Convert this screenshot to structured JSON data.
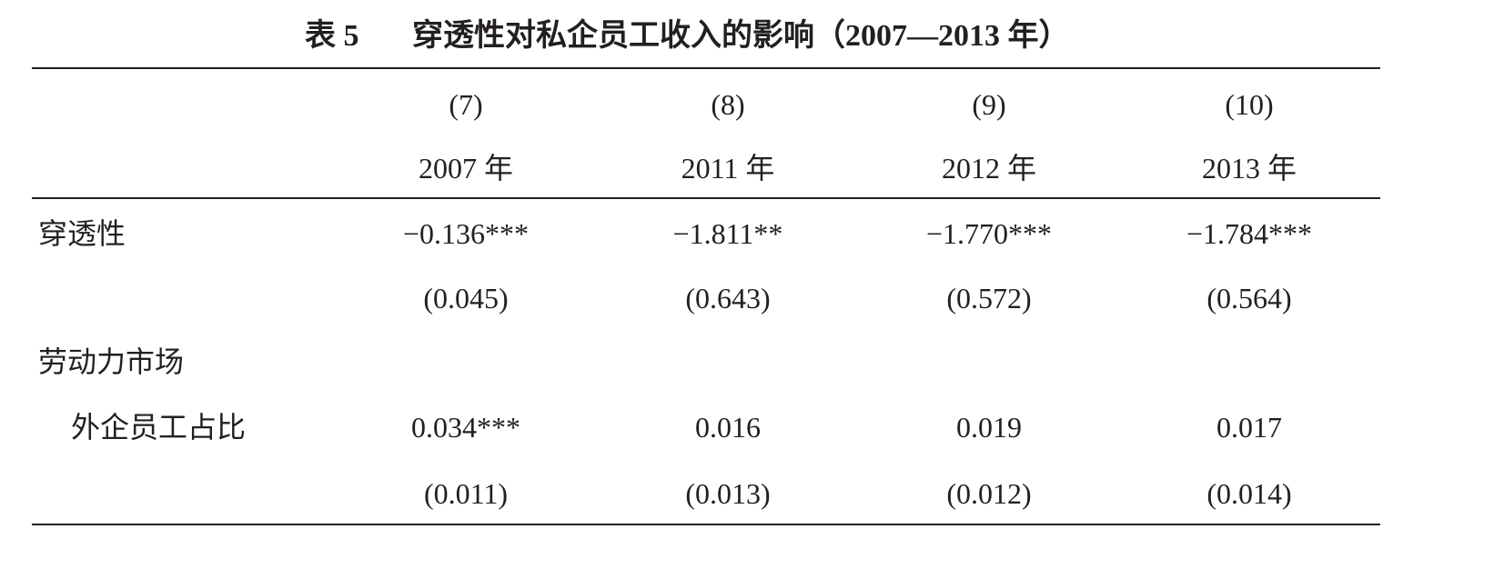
{
  "title": {
    "label": "表 5",
    "caption": "穿透性对私企员工收入的影响（2007—2013 年）"
  },
  "table": {
    "columns": [
      {
        "number": "(7)",
        "year": "2007 年"
      },
      {
        "number": "(8)",
        "year": "2011 年"
      },
      {
        "number": "(9)",
        "year": "2012 年"
      },
      {
        "number": "(10)",
        "year": "2013 年"
      }
    ],
    "rows": [
      {
        "label": "穿透性",
        "cells": [
          "−0.136***",
          "−1.811**",
          "−1.770***",
          "−1.784***"
        ]
      },
      {
        "cells": [
          "(0.045)",
          "(0.643)",
          "(0.572)",
          "(0.564)"
        ]
      },
      {
        "label": "劳动力市场"
      },
      {
        "label": "外企员工占比",
        "cells": [
          "0.034***",
          "0.016",
          "0.019",
          "0.017"
        ]
      },
      {
        "cells": [
          "(0.011)",
          "(0.013)",
          "(0.012)",
          "(0.014)"
        ]
      }
    ]
  }
}
